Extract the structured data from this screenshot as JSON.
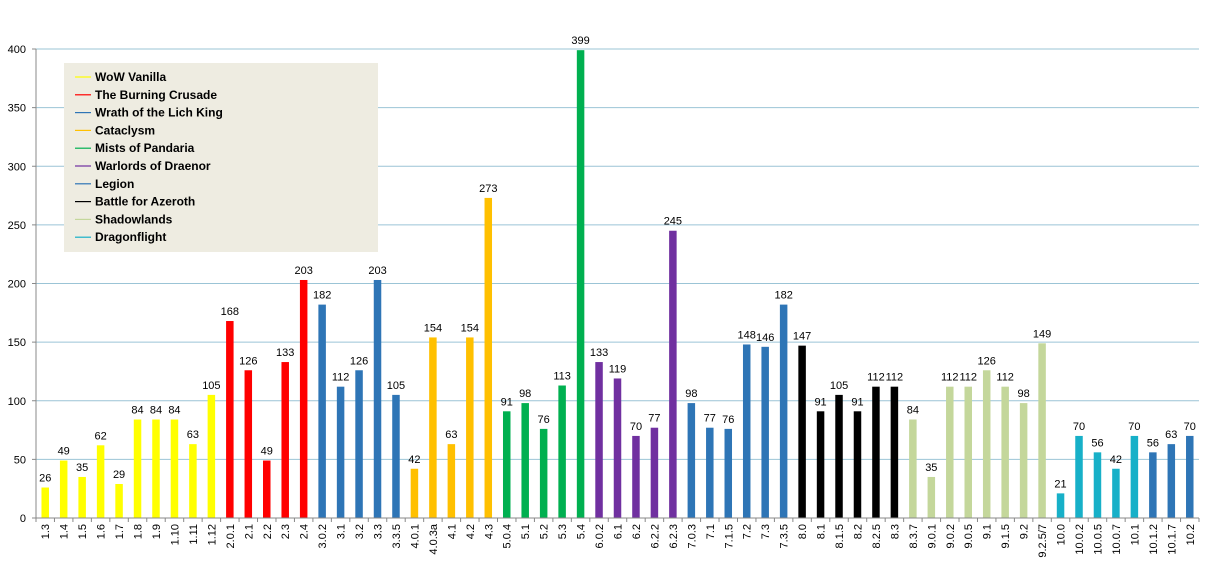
{
  "chart_data": {
    "type": "bar",
    "title": "",
    "xlabel": "",
    "ylabel": "",
    "ylim": [
      0,
      400
    ],
    "yticks": [
      0,
      50,
      100,
      150,
      200,
      250,
      300,
      350,
      400
    ],
    "grid": "horizontal",
    "legend_position": "top-left",
    "series": [
      {
        "name": "WoW Vanilla",
        "color": "#ffff00"
      },
      {
        "name": "The Burning Crusade",
        "color": "#ff0000"
      },
      {
        "name": "Wrath of the Lich King",
        "color": "#2e75b6"
      },
      {
        "name": "Cataclysm",
        "color": "#ffc000"
      },
      {
        "name": "Mists of Pandaria",
        "color": "#00b050"
      },
      {
        "name": "Warlords of Draenor",
        "color": "#7030a0"
      },
      {
        "name": "Legion",
        "color": "#2e75b6"
      },
      {
        "name": "Battle for Azeroth",
        "color": "#000000"
      },
      {
        "name": "Shadowlands",
        "color": "#c4d79b"
      },
      {
        "name": "Dragonflight",
        "color": "#17b0c8"
      }
    ],
    "categories": [
      "1.3",
      "1.4",
      "1.5",
      "1.6",
      "1.7",
      "1.8",
      "1.9",
      "1.10",
      "1.11",
      "1.12",
      "2.0.1",
      "2.1",
      "2.2",
      "2.3",
      "2.4",
      "3.0.2",
      "3.1",
      "3.2",
      "3.3",
      "3.3.5",
      "4.0.1",
      "4.0.3a",
      "4.1",
      "4.2",
      "4.3",
      "5.0.4",
      "5.1",
      "5.2",
      "5.3",
      "5.4",
      "6.0.2",
      "6.1",
      "6.2",
      "6.2.2",
      "6.2.3",
      "7.0.3",
      "7.1",
      "7.1.5",
      "7.2",
      "7.3",
      "7.3.5",
      "8.0",
      "8.1",
      "8.1.5",
      "8.2",
      "8.2.5",
      "8.3",
      "8.3.7",
      "9.0.1",
      "9.0.2",
      "9.0.5",
      "9.1",
      "9.1.5",
      "9.2",
      "9.2.5/7",
      "10.0",
      "10.0.2",
      "10.0.5",
      "10.0.7",
      "10.1",
      "10.1.2",
      "10.1.7",
      "10.2"
    ],
    "values": [
      26,
      49,
      35,
      62,
      29,
      84,
      84,
      84,
      63,
      105,
      168,
      126,
      49,
      133,
      203,
      182,
      112,
      126,
      203,
      105,
      42,
      154,
      63,
      154,
      273,
      91,
      98,
      76,
      113,
      399,
      133,
      119,
      70,
      77,
      245,
      98,
      77,
      76,
      148,
      146,
      182,
      147,
      91,
      105,
      91,
      112,
      112,
      84,
      35,
      112,
      112,
      126,
      112,
      98,
      149,
      21,
      70,
      56,
      42,
      70,
      56,
      63,
      70
    ],
    "bar_colors": [
      "#ffff00",
      "#ffff00",
      "#ffff00",
      "#ffff00",
      "#ffff00",
      "#ffff00",
      "#ffff00",
      "#ffff00",
      "#ffff00",
      "#ffff00",
      "#ff0000",
      "#ff0000",
      "#ff0000",
      "#ff0000",
      "#ff0000",
      "#2e75b6",
      "#2e75b6",
      "#2e75b6",
      "#2e75b6",
      "#2e75b6",
      "#ffc000",
      "#ffc000",
      "#ffc000",
      "#ffc000",
      "#ffc000",
      "#00b050",
      "#00b050",
      "#00b050",
      "#00b050",
      "#00b050",
      "#7030a0",
      "#7030a0",
      "#7030a0",
      "#7030a0",
      "#7030a0",
      "#2e75b6",
      "#2e75b6",
      "#2e75b6",
      "#2e75b6",
      "#2e75b6",
      "#2e75b6",
      "#000000",
      "#000000",
      "#000000",
      "#000000",
      "#000000",
      "#000000",
      "#c4d79b",
      "#c4d79b",
      "#c4d79b",
      "#c4d79b",
      "#c4d79b",
      "#c4d79b",
      "#c4d79b",
      "#c4d79b",
      "#17b0c8",
      "#17b0c8",
      "#17b0c8",
      "#17b0c8",
      "#17b0c8",
      "#2e75b6",
      "#2e75b6",
      "#2e75b6"
    ]
  }
}
